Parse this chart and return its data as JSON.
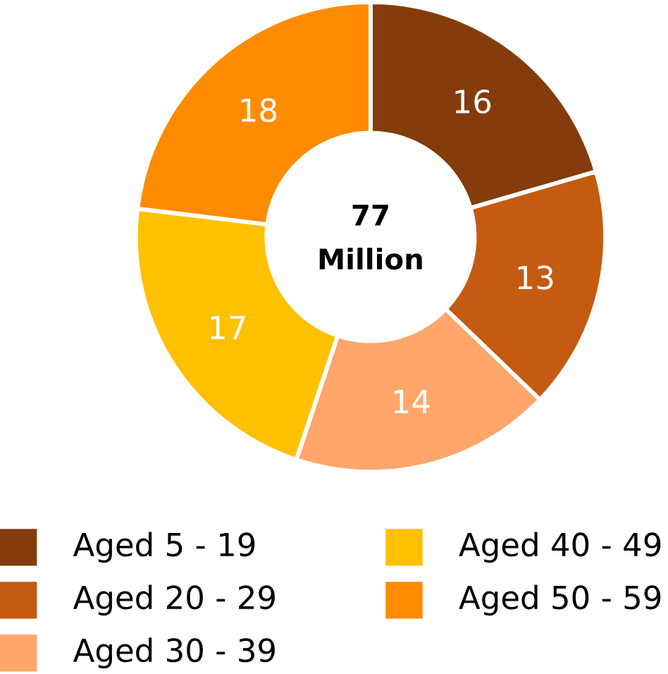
{
  "chart_data": {
    "type": "donut",
    "categories": [
      "Aged 5 - 19",
      "Aged 20 - 29",
      "Aged 30 - 39",
      "Aged 40 - 49",
      "Aged 50 - 59"
    ],
    "values": [
      16,
      13,
      14,
      17,
      18
    ],
    "colors": [
      "#843c0c",
      "#c55a11",
      "#ffa66b",
      "#ffc000",
      "#ff8c00"
    ],
    "data_labels": true,
    "legend": "bottom",
    "annotations": [
      "77",
      "Million"
    ]
  }
}
